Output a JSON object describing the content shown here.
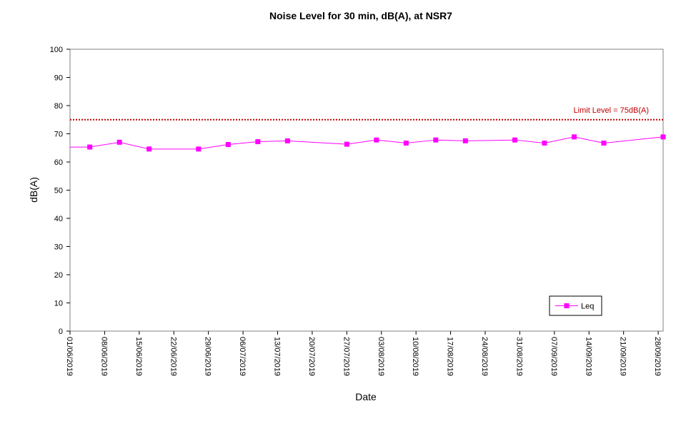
{
  "chart_data": {
    "type": "line",
    "title": "Noise Level for 30 min, dB(A), at NSR7",
    "xlabel": "Date",
    "ylabel": "dB(A)",
    "ylim": [
      0,
      100
    ],
    "yticks": [
      0,
      10,
      20,
      30,
      40,
      50,
      60,
      70,
      80,
      90,
      100
    ],
    "xlim": [
      "01/06/2019",
      "29/09/2019"
    ],
    "xticks": [
      "01/06/2019",
      "08/06/2019",
      "15/06/2019",
      "22/06/2019",
      "29/06/2019",
      "06/07/2019",
      "13/07/2019",
      "20/07/2019",
      "27/07/2019",
      "03/08/2019",
      "10/08/2019",
      "17/08/2019",
      "24/08/2019",
      "31/08/2019",
      "07/09/2019",
      "14/09/2019",
      "21/09/2019",
      "28/09/2019"
    ],
    "grid": false,
    "legend": {
      "position": "bottom-right",
      "entries": [
        "Leq"
      ]
    },
    "limit": {
      "label": "Limit Level = 75dB(A)",
      "value": 75,
      "color": "#c00000"
    },
    "series": [
      {
        "name": "Leq",
        "color": "#ff00ff",
        "x": [
          "01/06/2019",
          "05/06/2019",
          "11/06/2019",
          "17/06/2019",
          "27/06/2019",
          "03/07/2019",
          "09/07/2019",
          "15/07/2019",
          "27/07/2019",
          "02/08/2019",
          "08/08/2019",
          "14/08/2019",
          "20/08/2019",
          "30/08/2019",
          "05/09/2019",
          "11/09/2019",
          "17/09/2019",
          "29/09/2019"
        ],
        "values": [
          65.3,
          65.3,
          67.0,
          64.6,
          64.6,
          66.2,
          67.2,
          67.5,
          66.3,
          67.8,
          66.7,
          67.8,
          67.5,
          67.8,
          66.7,
          68.9,
          66.7,
          68.9
        ]
      }
    ]
  }
}
